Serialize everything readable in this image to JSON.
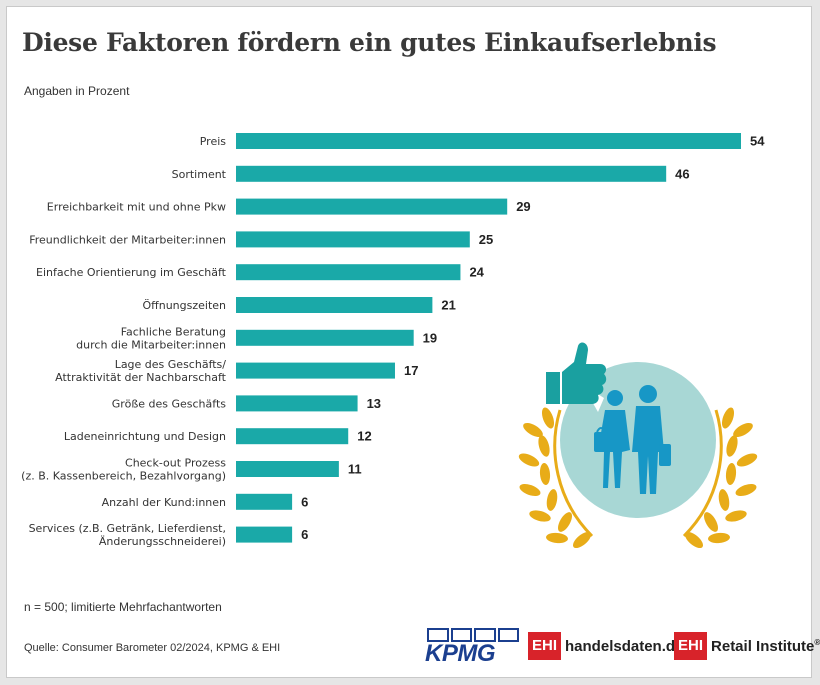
{
  "title": "Diese Faktoren fördern ein gutes Einkaufserlebnis",
  "subtitle": "Angaben in Prozent",
  "note": "n = 500;  limitierte Mehrfachantworten",
  "source": "Quelle: Consumer Barometer 02/2024, KPMG & EHI",
  "logos": {
    "kpmg": "KPMG",
    "ehi1_box": "EHI",
    "ehi1_text": "handelsdaten.de",
    "ehi2_box": "EHI",
    "ehi2_text": "Retail Institute",
    "reg": "®"
  },
  "colors": {
    "bar": "#1aa9a8",
    "illustration_circle": "#a8d7d5",
    "figure": "#1797c6",
    "thumb": "#1aa0a0",
    "laurel": "#e8ac18",
    "kpmg_blue": "#1b3f8f",
    "ehi_red": "#d8232a"
  },
  "icons": [
    "thumbs-up-icon",
    "shoppers-icon",
    "laurel-wreath-icon"
  ],
  "chart_data": {
    "type": "bar",
    "orientation": "horizontal",
    "categories": [
      [
        "Preis"
      ],
      [
        "Sortiment"
      ],
      [
        "Erreichbarkeit mit und ohne Pkw"
      ],
      [
        "Freundlichkeit der Mitarbeiter:innen"
      ],
      [
        "Einfache Orientierung im Geschäft"
      ],
      [
        "Öffnungszeiten"
      ],
      [
        "Fachliche Beratung",
        "durch die Mitarbeiter:innen"
      ],
      [
        "Lage des Geschäfts/",
        "Attraktivität der Nachbarschaft"
      ],
      [
        "Größe des Geschäfts"
      ],
      [
        "Ladeneinrichtung und Design"
      ],
      [
        "Check-out Prozess",
        "(z. B. Kassenbereich, Bezahlvorgang)"
      ],
      [
        "Anzahl der Kund:innen"
      ],
      [
        "Services (z.B. Getränk, Lieferdienst,",
        "Änderungsschneiderei)"
      ]
    ],
    "values": [
      54,
      46,
      29,
      25,
      24,
      21,
      19,
      17,
      13,
      12,
      11,
      6,
      6
    ],
    "unit": "Prozent",
    "xlim": [
      0,
      54
    ],
    "grid": false,
    "legend": "none"
  }
}
